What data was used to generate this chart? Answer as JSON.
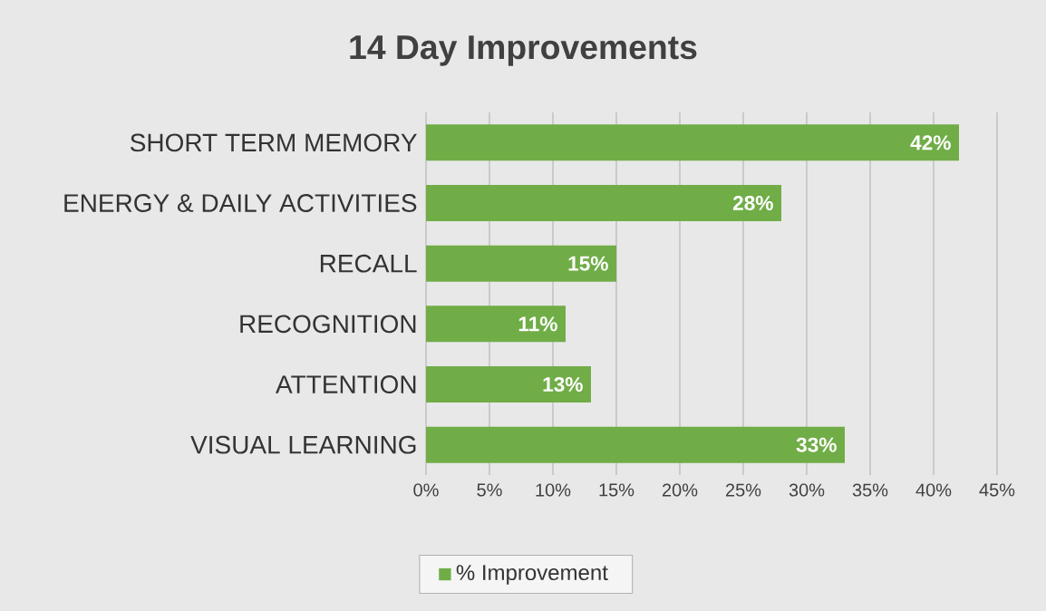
{
  "chart_data": {
    "type": "bar",
    "orientation": "horizontal",
    "title": "14 Day Improvements",
    "categories": [
      "SHORT TERM MEMORY",
      "ENERGY & DAILY ACTIVITIES",
      "RECALL",
      "RECOGNITION",
      "ATTENTION",
      "VISUAL LEARNING"
    ],
    "series": [
      {
        "name": "% Improvement",
        "color": "#70ad47",
        "values": [
          42,
          28,
          15,
          11,
          13,
          33
        ],
        "value_labels": [
          "42%",
          "28%",
          "15%",
          "11%",
          "13%",
          "33%"
        ]
      }
    ],
    "xlim": [
      0,
      45
    ],
    "xticks": [
      {
        "value": 0,
        "label": "0%"
      },
      {
        "value": 5,
        "label": "5%"
      },
      {
        "value": 10,
        "label": "10%"
      },
      {
        "value": 15,
        "label": "15%"
      },
      {
        "value": 20,
        "label": "20%"
      },
      {
        "value": 25,
        "label": "25%"
      },
      {
        "value": 30,
        "label": "30%"
      },
      {
        "value": 35,
        "label": "35%"
      },
      {
        "value": 40,
        "label": "40%"
      },
      {
        "value": 45,
        "label": "45%"
      }
    ],
    "grid": "x",
    "legend": "bottom"
  }
}
